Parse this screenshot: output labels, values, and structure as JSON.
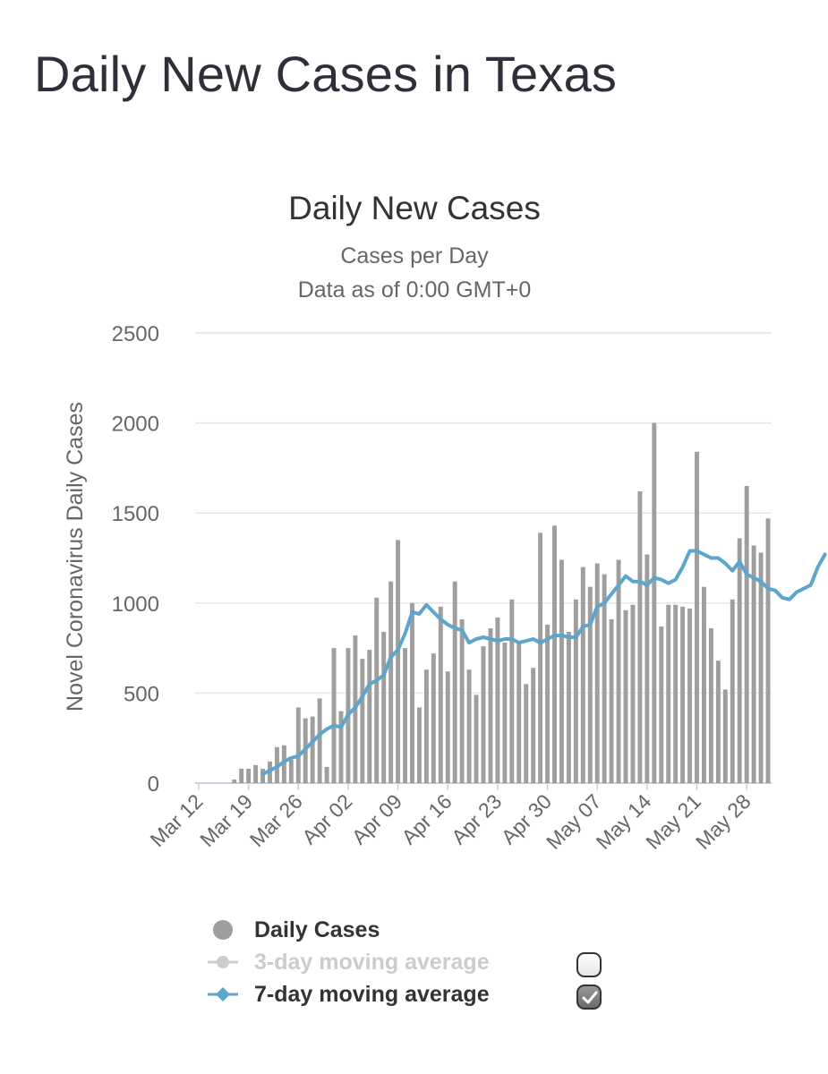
{
  "page_title": "Daily New Cases in Texas",
  "colors": {
    "bars": "#9e9e9e",
    "ma7": "#5da5cb",
    "ma3_disabled": "#cccccc",
    "grid": "#e6e6e6",
    "axis": "#c8d0e6"
  },
  "chart_data": {
    "type": "bar",
    "title": "Daily New Cases",
    "subtitle": "Cases per Day",
    "subtitle2": "Data as of 0:00 GMT+0",
    "ylabel": "Novel Coronavirus Daily Cases",
    "xlabel": "",
    "ylim": [
      0,
      2500
    ],
    "yticks": [
      0,
      500,
      1000,
      1500,
      2000,
      2500
    ],
    "tick_dates": [
      "Mar 12",
      "Mar 19",
      "Mar 26",
      "Apr 02",
      "Apr 09",
      "Apr 16",
      "Apr 23",
      "Apr 30",
      "May 07",
      "May 14",
      "May 21",
      "May 28"
    ],
    "x_start": "Mar 12",
    "series": [
      {
        "name": "Daily Cases",
        "type": "bar",
        "values": [
          0,
          0,
          0,
          0,
          0,
          20,
          80,
          80,
          100,
          80,
          120,
          200,
          210,
          130,
          420,
          360,
          370,
          470,
          90,
          750,
          400,
          750,
          820,
          690,
          740,
          1030,
          840,
          1120,
          1350,
          750,
          1000,
          420,
          630,
          720,
          980,
          620,
          1120,
          910,
          630,
          490,
          760,
          860,
          920,
          780,
          1020,
          780,
          550,
          640,
          1390,
          880,
          1430,
          1240,
          840,
          1020,
          1200,
          1090,
          1220,
          1160,
          910,
          1240,
          960,
          990,
          1620,
          1270,
          2000,
          870,
          990,
          990,
          980,
          970,
          1840,
          1090,
          860,
          680,
          520,
          1020,
          1360,
          1650,
          1320,
          1280,
          1470
        ]
      },
      {
        "name": "3-day moving average",
        "type": "line",
        "enabled": false,
        "values": []
      },
      {
        "name": "7-day moving average",
        "type": "line",
        "enabled": true,
        "start_day": 9,
        "values": [
          50,
          70,
          90,
          120,
          140,
          150,
          190,
          230,
          270,
          300,
          320,
          310,
          380,
          420,
          480,
          550,
          570,
          600,
          700,
          740,
          830,
          950,
          940,
          990,
          950,
          910,
          880,
          860,
          850,
          780,
          800,
          810,
          800,
          790,
          800,
          800,
          780,
          790,
          800,
          780,
          800,
          820,
          820,
          810,
          810,
          870,
          880,
          980,
          1000,
          1050,
          1100,
          1150,
          1120,
          1120,
          1100,
          1140,
          1130,
          1110,
          1130,
          1200,
          1290,
          1290,
          1270,
          1250,
          1250,
          1220,
          1180,
          1230,
          1160,
          1140,
          1120,
          1080,
          1070,
          1030,
          1020,
          1060,
          1080,
          1100,
          1200,
          1270
        ]
      }
    ],
    "legend": [
      {
        "label": "Daily Cases",
        "enabled": true,
        "checkbox": false
      },
      {
        "label": "3-day moving average",
        "enabled": false,
        "checkbox": true,
        "checked": false
      },
      {
        "label": "7-day moving average",
        "enabled": true,
        "checkbox": true,
        "checked": true
      }
    ]
  }
}
